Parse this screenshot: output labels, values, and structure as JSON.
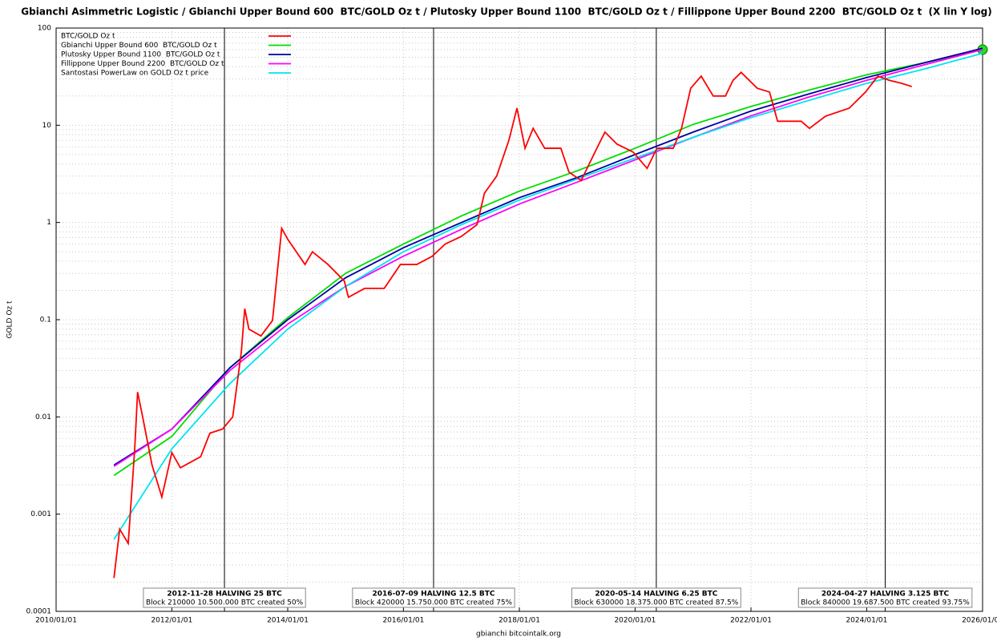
{
  "chart_data": {
    "type": "line",
    "title": "Gbianchi Asimmetric Logistic / Gbianchi Upper Bound 600  BTC/GOLD Oz t / Plutosky Upper Bound 1100  BTC/GOLD Oz t / Fillippone Upper Bound 2200  BTC/GOLD Oz t  (X lin Y log)",
    "x_label": "gbianchi bitcointalk.org",
    "y_label": "GOLD Oz t",
    "log_y": true,
    "grid": true,
    "legend": "top-left",
    "xlim": [
      "2010/01/01",
      "2026/01/01"
    ],
    "xticks": [
      "2010/01/01",
      "2012/01/01",
      "2014/01/01",
      "2016/01/01",
      "2018/01/01",
      "2020/01/01",
      "2022/01/01",
      "2024/01/01",
      "2026/01/01"
    ],
    "ylim": [
      0.0001,
      100
    ],
    "yticks": [
      0.0001,
      0.001,
      0.01,
      0.1,
      1,
      10,
      100
    ],
    "series": [
      {
        "name": "BTC/GOLD Oz t",
        "color": "#ff0000",
        "x": [
          "2011/01/01",
          "2011/02/06",
          "2011/04/01",
          "2011/05/12",
          "2011/05/30",
          "2011/07/01",
          "2011/08/29",
          "2011/10/30",
          "2012/01/01",
          "2012/02/24",
          "2012/07/01",
          "2012/08/28",
          "2012/11/16",
          "2013/01/19",
          "2013/03/14",
          "2013/04/05",
          "2013/05/01",
          "2013/07/16",
          "2013/09/27",
          "2013/11/24",
          "2014/01/04",
          "2014/04/20",
          "2014/06/06",
          "2014/09/12",
          "2014/12/24",
          "2015/01/19",
          "2015/05/01",
          "2015/09/02",
          "2015/12/13",
          "2016/03/25",
          "2016/07/01",
          "2016/09/20",
          "2017/01/01",
          "2017/04/09",
          "2017/05/26",
          "2017/08/11",
          "2017/10/27",
          "2017/12/17",
          "2018/02/06",
          "2018/03/29",
          "2018/06/10",
          "2018/09/20",
          "2018/11/10",
          "2019/01/26",
          "2019/05/05",
          "2019/06/25",
          "2019/09/09",
          "2019/12/20",
          "2020/03/17",
          "2020/05/18",
          "2020/08/29",
          "2020/10/20",
          "2020/12/17",
          "2021/02/21",
          "2021/05/08",
          "2021/07/24",
          "2021/09/10",
          "2021/10/31",
          "2022/02/10",
          "2022/04/28",
          "2022/06/18",
          "2022/11/14",
          "2023/01/05",
          "2023/04/16",
          "2023/09/13",
          "2023/12/25",
          "2024/03/11",
          "2024/05/23",
          "2024/08/08",
          "2024/10/12"
        ],
        "values": [
          0.00022,
          0.0007,
          0.0005,
          0.0047,
          0.018,
          0.01,
          0.0032,
          0.0015,
          0.0043,
          0.003,
          0.0039,
          0.0068,
          0.0075,
          0.01,
          0.046,
          0.13,
          0.08,
          0.068,
          0.098,
          0.87,
          0.66,
          0.37,
          0.5,
          0.37,
          0.25,
          0.17,
          0.21,
          0.21,
          0.37,
          0.37,
          0.45,
          0.6,
          0.72,
          0.95,
          2.0,
          3.0,
          7.0,
          15,
          5.8,
          9.3,
          5.8,
          5.8,
          3.3,
          2.7,
          5.8,
          8.5,
          6.4,
          5.3,
          3.6,
          5.8,
          5.8,
          9.3,
          24,
          32,
          20,
          20,
          29,
          35,
          24,
          22,
          11,
          11,
          9.3,
          12.4,
          15,
          22,
          32,
          29,
          27,
          25
        ]
      },
      {
        "name": "Gbianchi Upper Bound 600  BTC/GOLD Oz t",
        "color": "#00dd00",
        "end_marker": true,
        "x": [
          "2011/01/01",
          "2012/01/01",
          "2013/01/01",
          "2014/01/01",
          "2015/01/01",
          "2016/01/01",
          "2017/01/01",
          "2018/01/01",
          "2019/01/01",
          "2020/01/01",
          "2021/01/01",
          "2022/01/01",
          "2023/01/01",
          "2024/01/01",
          "2025/01/01",
          "2026/01/01"
        ],
        "values": [
          0.0025,
          0.0063,
          0.032,
          0.105,
          0.3,
          0.6,
          1.17,
          2.1,
          3.4,
          5.8,
          10.2,
          15.6,
          23,
          33,
          44,
          60
        ]
      },
      {
        "name": "Plutosky Upper Bound 1100  BTC/GOLD Oz t",
        "color": "#0000a0",
        "x": [
          "2011/01/01",
          "2012/01/01",
          "2013/01/01",
          "2014/01/01",
          "2015/01/01",
          "2016/01/01",
          "2017/01/01",
          "2018/01/01",
          "2019/01/01",
          "2020/01/01",
          "2021/01/01",
          "2022/01/01",
          "2023/01/01",
          "2024/01/01",
          "2025/01/01",
          "2026/01/01"
        ],
        "values": [
          0.0032,
          0.0075,
          0.032,
          0.1,
          0.27,
          0.55,
          1.0,
          1.8,
          2.9,
          5.0,
          8.5,
          14,
          21,
          31,
          44,
          62
        ]
      },
      {
        "name": "Fillippone Upper Bound 2200  BTC/GOLD Oz t",
        "color": "#ff00ff",
        "x": [
          "2011/01/01",
          "2012/01/01",
          "2013/01/01",
          "2014/01/01",
          "2015/01/01",
          "2016/01/01",
          "2017/01/01",
          "2018/01/01",
          "2019/01/01",
          "2020/01/01",
          "2021/01/01",
          "2022/01/01",
          "2023/01/01",
          "2024/01/01",
          "2025/01/01",
          "2026/01/01"
        ],
        "values": [
          0.0031,
          0.0075,
          0.03,
          0.09,
          0.22,
          0.45,
          0.85,
          1.55,
          2.6,
          4.4,
          7.5,
          12.5,
          19.5,
          29,
          42,
          60
        ]
      },
      {
        "name": "Santostasi PowerLaw on GOLD Oz t price",
        "color": "#00e5ee",
        "x": [
          "2011/01/01",
          "2012/01/01",
          "2013/01/01",
          "2014/01/01",
          "2015/01/01",
          "2016/01/01",
          "2017/01/01",
          "2018/01/01",
          "2019/01/01",
          "2020/01/01",
          "2021/01/01",
          "2022/01/01",
          "2023/01/01",
          "2024/01/01",
          "2025/01/01",
          "2026/01/01"
        ],
        "values": [
          0.00055,
          0.0047,
          0.022,
          0.08,
          0.22,
          0.5,
          0.95,
          1.7,
          2.8,
          4.6,
          7.5,
          12,
          18,
          27,
          38,
          55
        ]
      }
    ],
    "annotations": [
      {
        "x": "2012/11/28",
        "title": "2012-11-28 HALVING 25 BTC",
        "text": "Block 210000 10.500.000 BTC created 50%"
      },
      {
        "x": "2016/07/09",
        "title": "2016-07-09 HALVING 12.5 BTC",
        "text": "Block 420000 15.750.000 BTC created 75%"
      },
      {
        "x": "2020/05/14",
        "title": "2020-05-14 HALVING 6.25 BTC",
        "text": "Block 630000 18.375.000 BTC created 87.5%"
      },
      {
        "x": "2024/04/27",
        "title": "2024-04-27 HALVING 3.125 BTC",
        "text": "Block 840000 19.687.500 BTC created 93.75%"
      }
    ]
  }
}
